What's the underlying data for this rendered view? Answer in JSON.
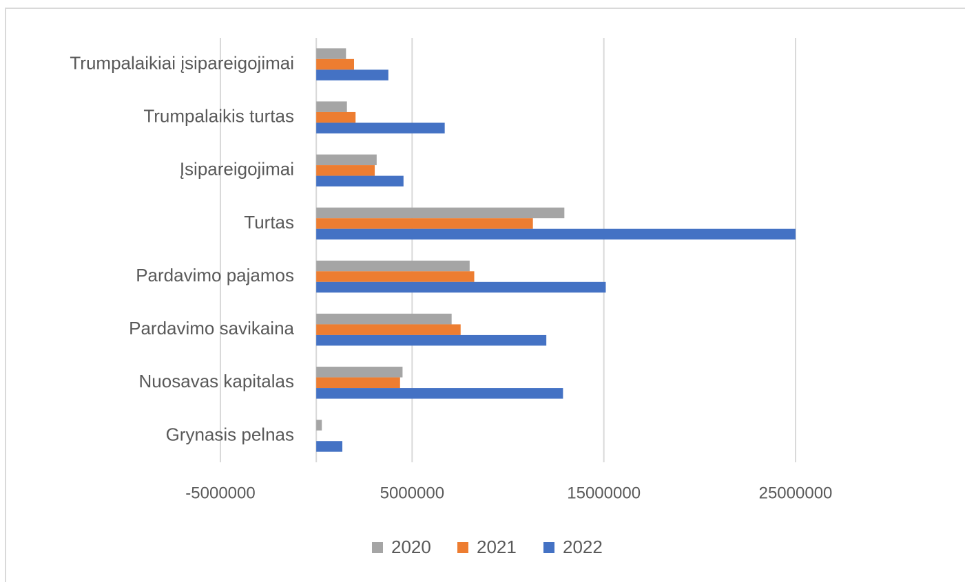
{
  "chart_data": {
    "type": "bar",
    "orientation": "horizontal",
    "categories": [
      "Trumpalaikiai įsipareigojimai",
      "Trumpalaikis turtas",
      "Įsipareigojimai",
      "Turtas",
      "Pardavimo pajamos",
      "Pardavimo savikaina",
      "Nuosavas kapitalas",
      "Grynasis pelnas"
    ],
    "series": [
      {
        "name": "2020",
        "color": "#a5a5a5",
        "values": [
          1550000,
          1600000,
          3150000,
          12940000,
          8000000,
          7060000,
          4500000,
          290000
        ]
      },
      {
        "name": "2021",
        "color": "#ed7d31",
        "values": [
          1970000,
          2050000,
          3050000,
          11300000,
          8240000,
          7530000,
          4370000,
          0
        ]
      },
      {
        "name": "2022",
        "color": "#4472c4",
        "values": [
          3760000,
          6700000,
          4550000,
          25000000,
          15100000,
          12000000,
          12870000,
          1360000
        ]
      }
    ],
    "xlim": [
      -5000000,
      25000000
    ],
    "xticks": [
      -5000000,
      5000000,
      15000000,
      25000000
    ],
    "grid": true,
    "legend": "bottom"
  }
}
